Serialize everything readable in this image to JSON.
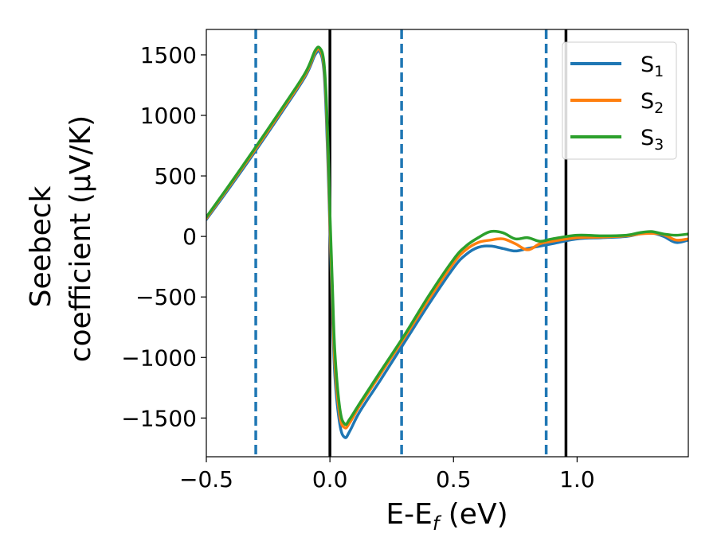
{
  "chart_data": {
    "type": "line",
    "xlabel": "E-E",
    "xlabel_sub": "f",
    "xlabel_unit": " (eV)",
    "ylabel_line1": "Seebeck",
    "ylabel_line2": "coefficient  (μV/K)",
    "xlim": [
      -0.5,
      1.45
    ],
    "ylim": [
      -1820,
      1710
    ],
    "x_ticks": [
      -0.5,
      0.0,
      0.5,
      1.0
    ],
    "x_tick_labels": [
      "−0.5",
      "0.0",
      "0.5",
      "1.0"
    ],
    "y_ticks": [
      1500,
      1000,
      500,
      0,
      -500,
      -1000,
      -1500
    ],
    "y_tick_labels": [
      "1500",
      "1000",
      "500",
      "0",
      "−500",
      "−1000",
      "−1500"
    ],
    "grid": false,
    "legend_position": "top-right",
    "vlines": [
      {
        "x": -0.3,
        "style": "dashed",
        "color": "#1f77b4"
      },
      {
        "x": 0.0,
        "style": "solid",
        "color": "#000000"
      },
      {
        "x": 0.29,
        "style": "dashed",
        "color": "#1f77b4"
      },
      {
        "x": 0.875,
        "style": "dashed",
        "color": "#1f77b4"
      },
      {
        "x": 0.955,
        "style": "solid",
        "color": "#000000"
      }
    ],
    "series": [
      {
        "name": "S",
        "sub": "1",
        "color": "#1f77b4",
        "x": [
          -0.5,
          -0.4,
          -0.3,
          -0.2,
          -0.1,
          -0.06,
          -0.04,
          -0.025,
          -0.015,
          -0.005,
          0.0,
          0.01,
          0.02,
          0.04,
          0.06,
          0.08,
          0.12,
          0.2,
          0.3,
          0.4,
          0.5,
          0.55,
          0.6,
          0.65,
          0.7,
          0.75,
          0.8,
          0.85,
          0.9,
          1.0,
          1.1,
          1.2,
          1.25,
          1.3,
          1.35,
          1.4,
          1.45
        ],
        "y": [
          140,
          420,
          710,
          1010,
          1320,
          1500,
          1520,
          1380,
          1000,
          400,
          50,
          -600,
          -1150,
          -1550,
          -1660,
          -1610,
          -1450,
          -1200,
          -880,
          -560,
          -260,
          -150,
          -90,
          -80,
          -100,
          -120,
          -100,
          -80,
          -60,
          -20,
          -10,
          0,
          20,
          30,
          0,
          -50,
          -30
        ]
      },
      {
        "name": "S",
        "sub": "2",
        "color": "#ff7f0e",
        "x": [
          -0.5,
          -0.4,
          -0.3,
          -0.2,
          -0.1,
          -0.06,
          -0.04,
          -0.025,
          -0.015,
          -0.005,
          0.0,
          0.01,
          0.02,
          0.04,
          0.06,
          0.08,
          0.12,
          0.2,
          0.3,
          0.4,
          0.5,
          0.55,
          0.6,
          0.65,
          0.7,
          0.75,
          0.8,
          0.85,
          0.9,
          1.0,
          1.1,
          1.2,
          1.25,
          1.3,
          1.35,
          1.4,
          1.45
        ],
        "y": [
          150,
          435,
          725,
          1025,
          1335,
          1520,
          1540,
          1420,
          1100,
          500,
          120,
          -500,
          -1050,
          -1480,
          -1580,
          -1540,
          -1400,
          -1150,
          -840,
          -520,
          -220,
          -110,
          -50,
          -30,
          -20,
          -60,
          -110,
          -60,
          -40,
          -10,
          -5,
          5,
          20,
          25,
          15,
          -30,
          -20
        ]
      },
      {
        "name": "S",
        "sub": "3",
        "color": "#2ca02c",
        "x": [
          -0.5,
          -0.4,
          -0.3,
          -0.2,
          -0.1,
          -0.06,
          -0.04,
          -0.025,
          -0.015,
          -0.005,
          0.0,
          0.01,
          0.02,
          0.04,
          0.06,
          0.08,
          0.12,
          0.2,
          0.3,
          0.4,
          0.5,
          0.55,
          0.6,
          0.65,
          0.7,
          0.75,
          0.8,
          0.85,
          0.9,
          1.0,
          1.1,
          1.2,
          1.25,
          1.3,
          1.35,
          1.4,
          1.45
        ],
        "y": [
          160,
          445,
          740,
          1040,
          1350,
          1535,
          1555,
          1450,
          1150,
          600,
          200,
          -400,
          -950,
          -1420,
          -1550,
          -1510,
          -1380,
          -1130,
          -820,
          -490,
          -190,
          -80,
          -10,
          40,
          30,
          -20,
          -10,
          -40,
          -20,
          10,
          5,
          10,
          30,
          40,
          20,
          10,
          20
        ]
      }
    ]
  }
}
